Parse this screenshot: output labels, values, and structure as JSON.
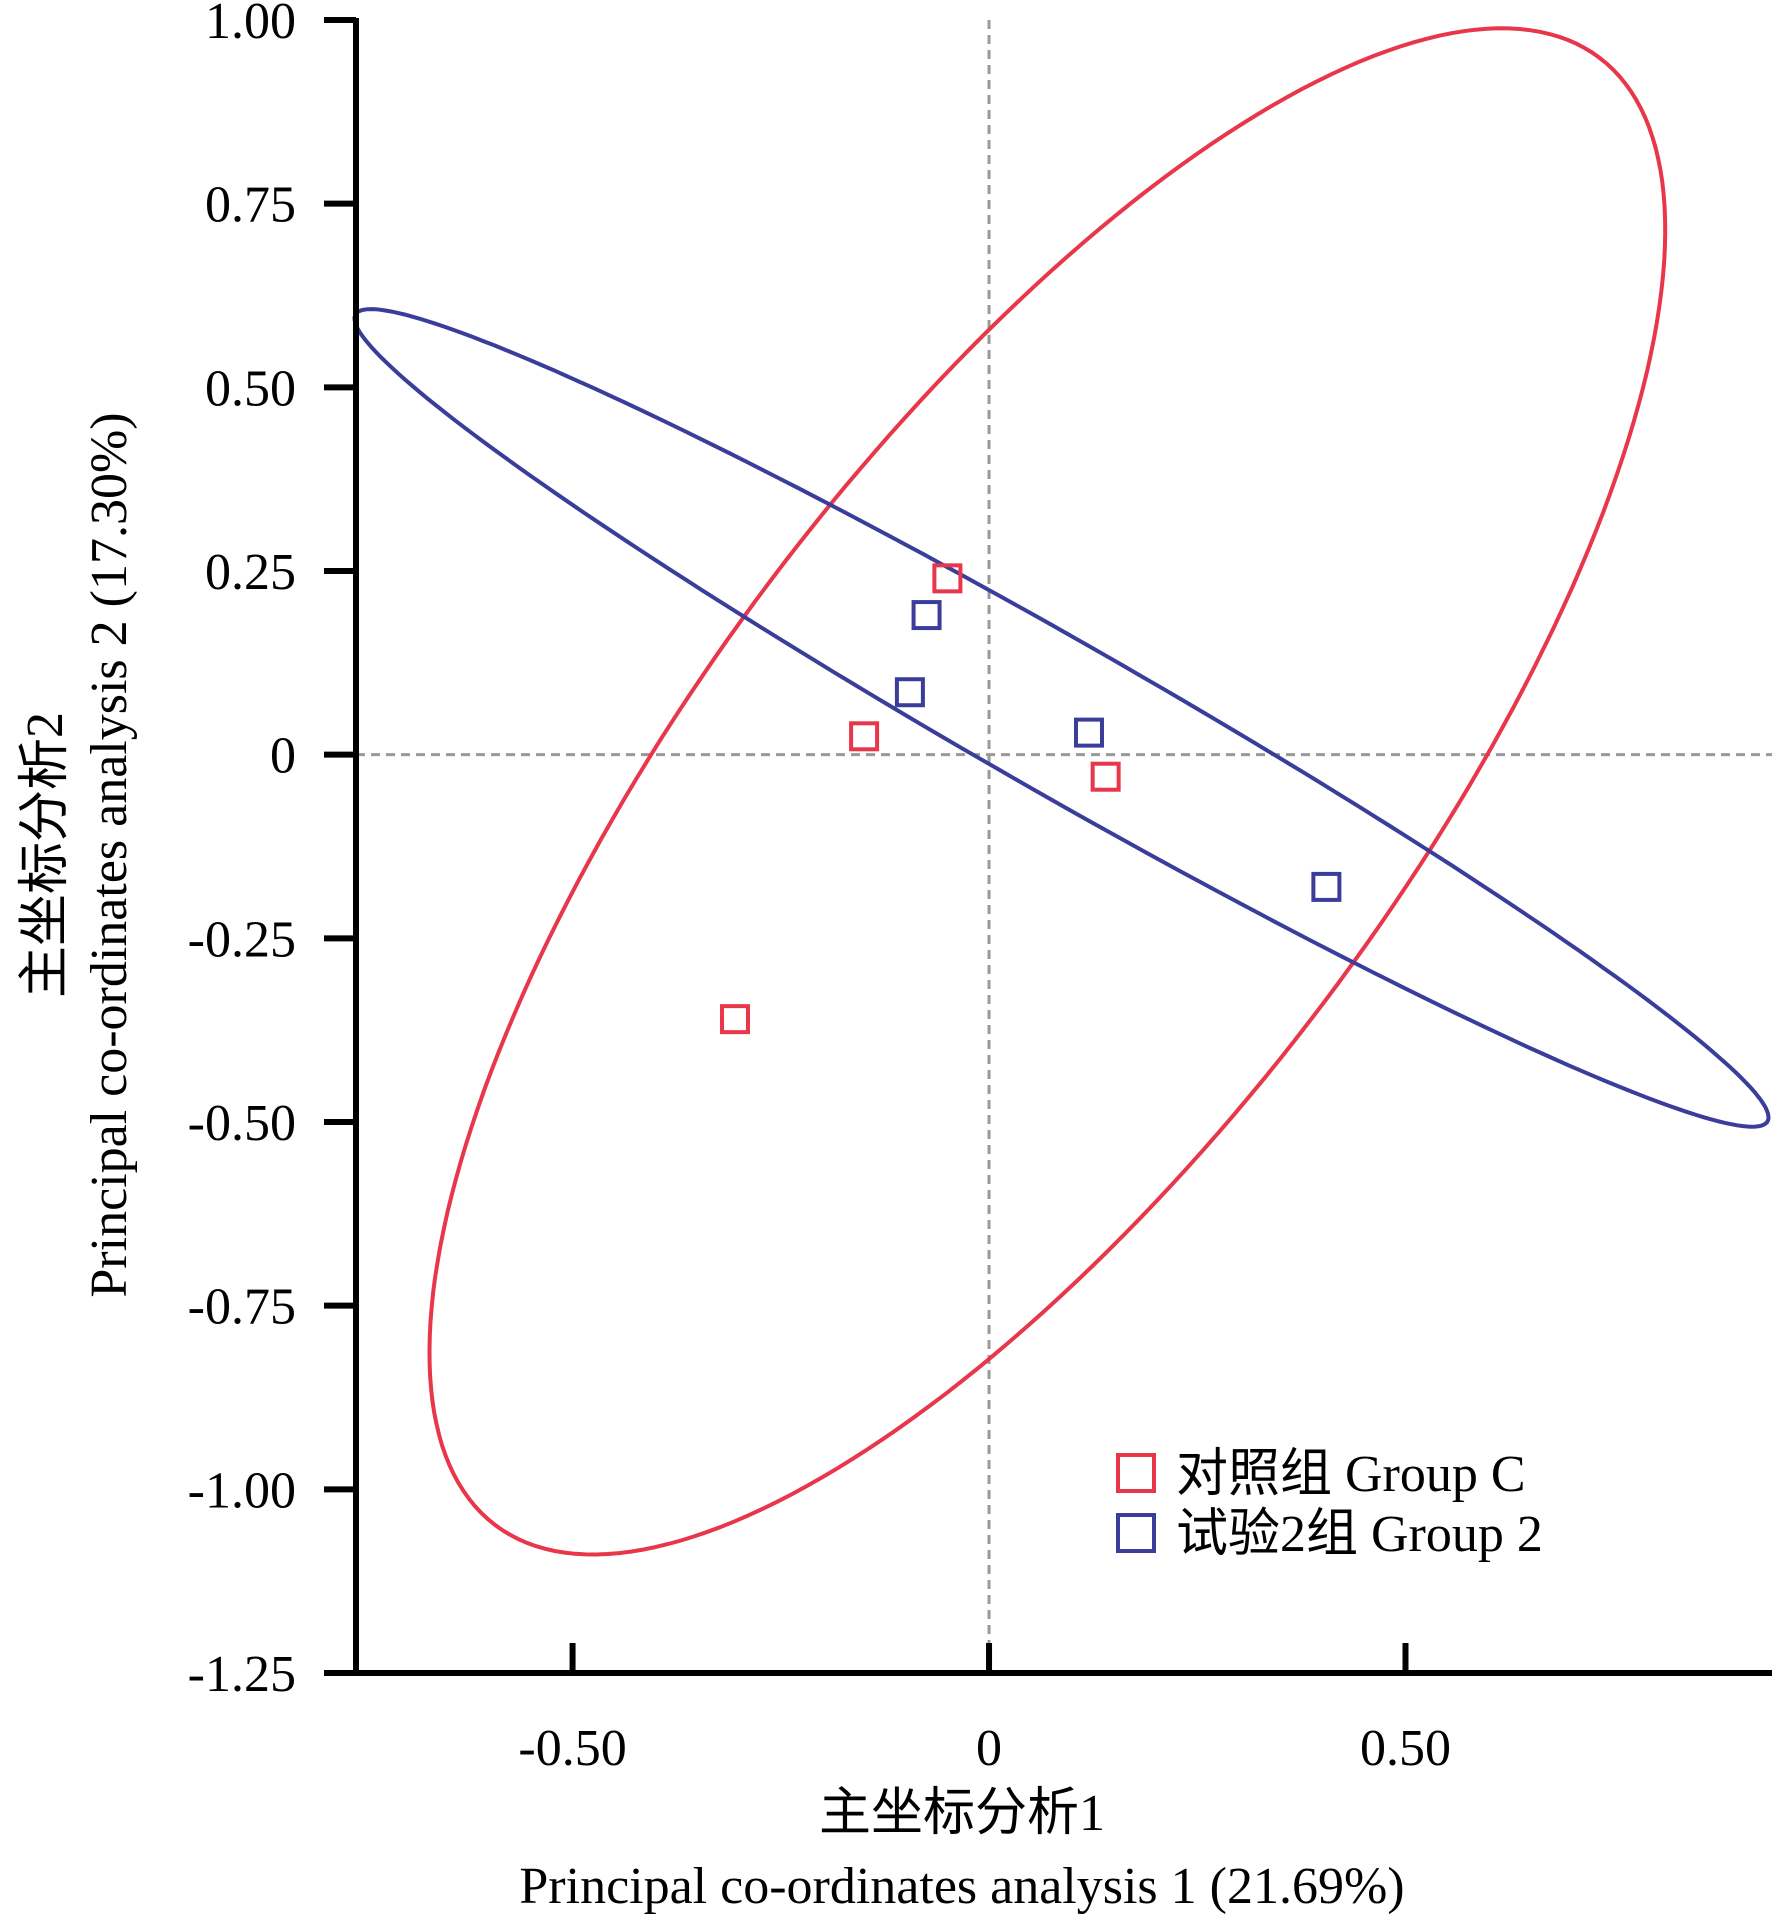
{
  "chart_data": {
    "type": "scatter",
    "title": "",
    "xlabel_cn": "主坐标分析1",
    "xlabel_en": "Principal co-ordinates analysis 1 (21.69%)",
    "ylabel_cn": "主坐标分析2",
    "ylabel_en": "Principal co-ordinates analysis 2 (17.30%)",
    "xlim": [
      -0.76,
      0.94
    ],
    "ylim": [
      -1.25,
      1.0
    ],
    "xticks": [
      -0.5,
      0,
      0.5
    ],
    "xtick_labels": [
      "-0.50",
      "0",
      "0.50"
    ],
    "yticks": [
      1.0,
      0.75,
      0.5,
      0.25,
      0,
      -0.25,
      -0.5,
      -0.75,
      -1.0,
      -1.25
    ],
    "ytick_labels": [
      "1.00",
      "0.75",
      "0.50",
      "0.25",
      "0",
      "-0.25",
      "-0.50",
      "-0.75",
      "-1.00",
      "-1.25"
    ],
    "reference_lines": {
      "x": 0,
      "y": 0,
      "style": "dashed",
      "color": "#999999"
    },
    "grid": false,
    "legend_position": "bottom-right",
    "series": [
      {
        "name": "对照组 Group C",
        "color": "#e8364a",
        "marker": "open-square",
        "points": [
          {
            "x": -0.05,
            "y": 0.24
          },
          {
            "x": -0.15,
            "y": 0.025
          },
          {
            "x": 0.14,
            "y": -0.03
          },
          {
            "x": -0.305,
            "y": -0.36
          }
        ],
        "ellipse": {
          "cx": 0.07,
          "cy": -0.05,
          "semi_major": 1.2,
          "semi_minor": 0.435,
          "angle_deg": 57.5
        }
      },
      {
        "name": "试验2组 Group 2",
        "color": "#3a3d9a",
        "marker": "open-square",
        "points": [
          {
            "x": -0.075,
            "y": 0.19
          },
          {
            "x": -0.095,
            "y": 0.085
          },
          {
            "x": 0.12,
            "y": 0.03
          },
          {
            "x": 0.405,
            "y": -0.18
          }
        ],
        "ellipse": {
          "cx": 0.087,
          "cy": 0.05,
          "semi_major": 1.01,
          "semi_minor": 0.1,
          "angle_deg": -33
        }
      }
    ]
  }
}
